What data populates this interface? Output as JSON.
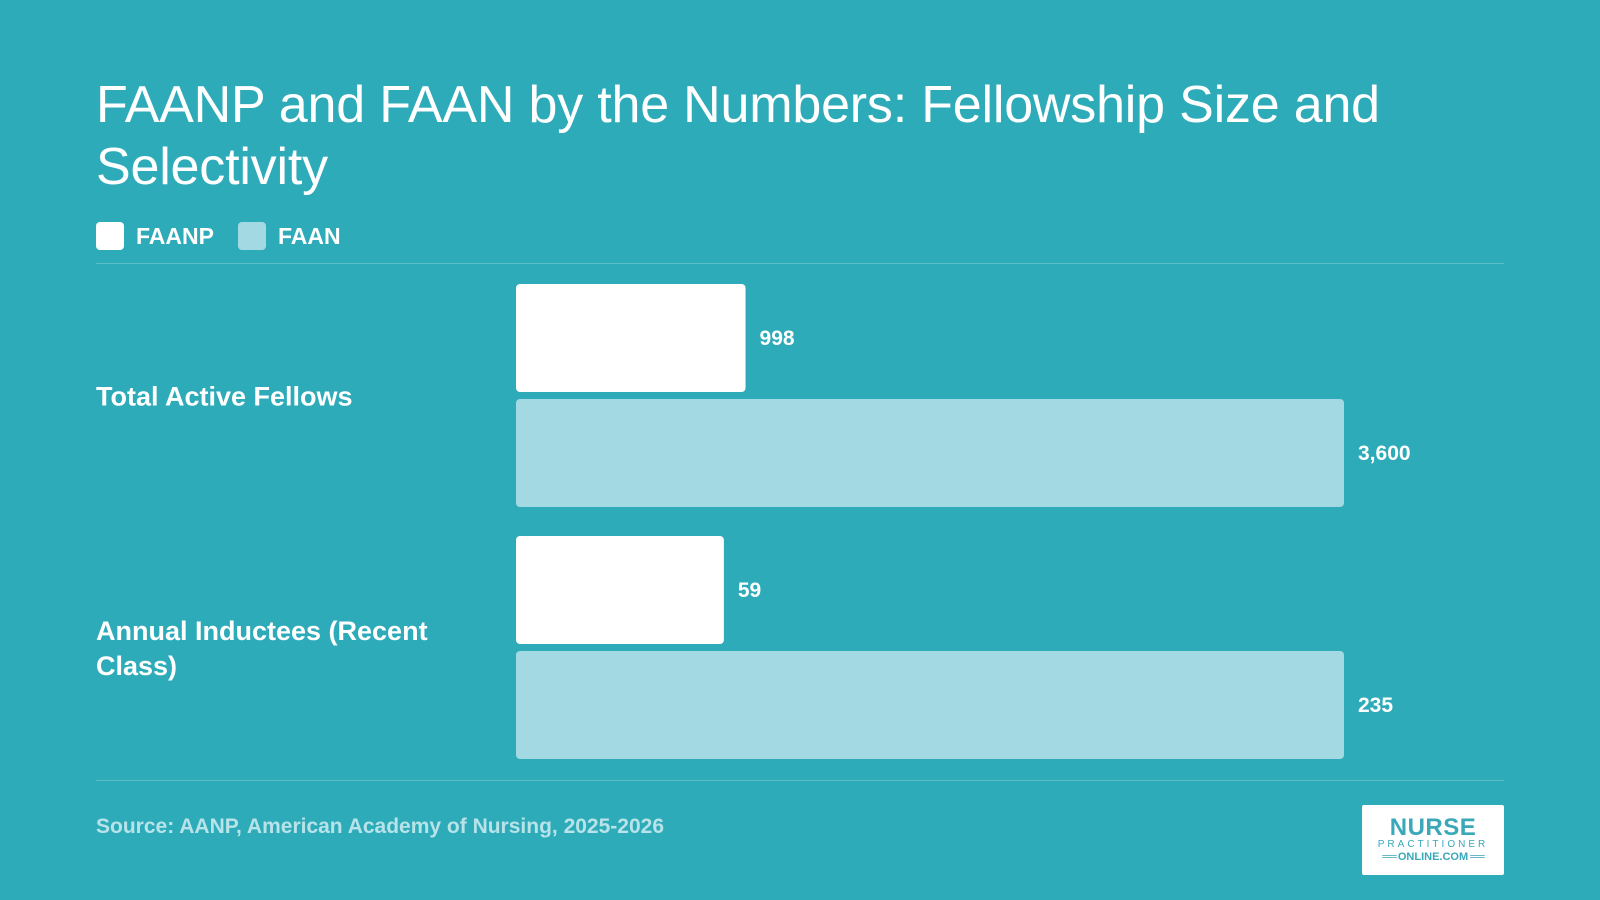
{
  "title": "FAANP and FAAN by the Numbers: Fellowship Size and Selectivity",
  "colors": {
    "background": "#2eabb9",
    "faanp": "#ffffff",
    "faan": "#a2d9e3"
  },
  "legend": [
    {
      "label": "FAANP",
      "color": "#ffffff"
    },
    {
      "label": "FAAN",
      "color": "#a2d9e3"
    }
  ],
  "source": "Source: AANP, American Academy of Nursing, 2025-2026",
  "logo": {
    "top": "NURSE",
    "middle": "PRACTITIONER",
    "bottom": "ONLINE.COM"
  },
  "chart_data": {
    "type": "bar",
    "orientation": "horizontal",
    "categories": [
      "Total Active Fellows",
      "Annual Inductees (Recent Class)"
    ],
    "series": [
      {
        "name": "FAANP",
        "values": [
          998,
          59
        ],
        "labels": [
          "998",
          "59"
        ]
      },
      {
        "name": "FAAN",
        "values": [
          3600,
          235
        ],
        "labels": [
          "3,600",
          "235"
        ]
      }
    ],
    "scale": "bars within each group scaled to the group maximum",
    "grid": false,
    "legend_position": "top-left"
  }
}
